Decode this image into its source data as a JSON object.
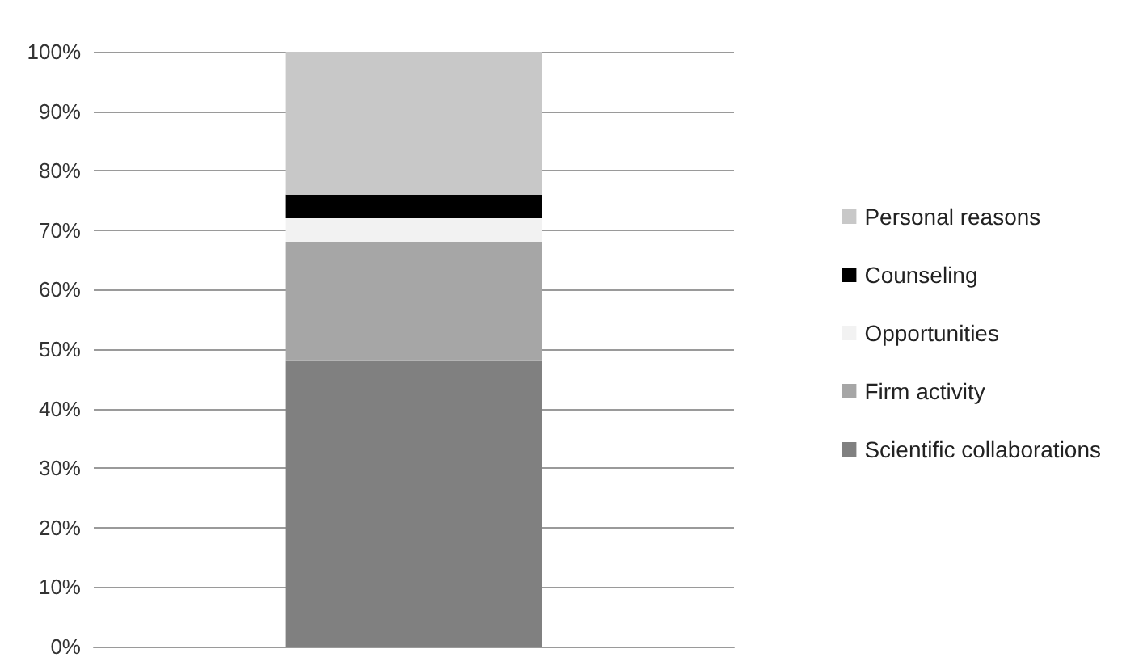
{
  "chart_data": {
    "type": "bar",
    "stacked": true,
    "categories": [
      null
    ],
    "series": [
      {
        "name": "Scientific collaborations",
        "color": "#808080",
        "values": [
          48
        ]
      },
      {
        "name": "Firm activity",
        "color": "#a6a6a6",
        "values": [
          20
        ]
      },
      {
        "name": "Opportunities",
        "color": "#f2f2f2",
        "values": [
          4
        ]
      },
      {
        "name": "Counseling",
        "color": "#000000",
        "values": [
          4
        ]
      },
      {
        "name": "Personal reasons",
        "color": "#c8c8c8",
        "values": [
          24
        ]
      }
    ],
    "ylim": [
      0,
      100
    ],
    "yticks": [
      {
        "value": 0,
        "label": "0%"
      },
      {
        "value": 10,
        "label": "10%"
      },
      {
        "value": 20,
        "label": "20%"
      },
      {
        "value": 30,
        "label": "30%"
      },
      {
        "value": 40,
        "label": "40%"
      },
      {
        "value": 50,
        "label": "50%"
      },
      {
        "value": 60,
        "label": "60%"
      },
      {
        "value": 70,
        "label": "70%"
      },
      {
        "value": 80,
        "label": "80%"
      },
      {
        "value": 90,
        "label": "90%"
      },
      {
        "value": 100,
        "label": "100%"
      }
    ],
    "grid": "y",
    "legend": "right"
  }
}
